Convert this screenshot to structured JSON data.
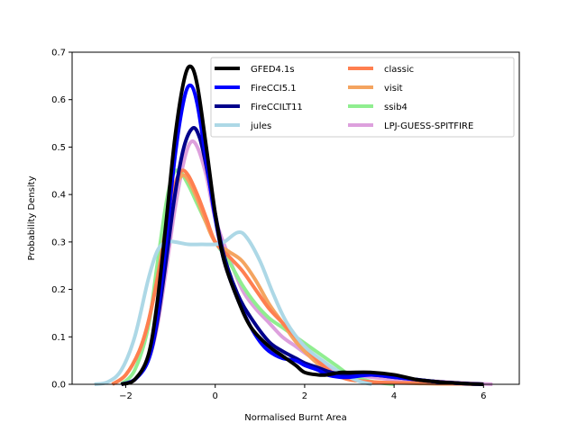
{
  "chart_data": {
    "type": "line",
    "title": "",
    "xlabel": "Normalised Burnt Area",
    "ylabel": "Probability Density",
    "xlim": [
      -3.2,
      6.8
    ],
    "ylim": [
      0,
      0.7
    ],
    "xticks": [
      -2,
      0,
      2,
      4,
      6
    ],
    "yticks": [
      0.0,
      0.1,
      0.2,
      0.3,
      0.4,
      0.5,
      0.6,
      0.7
    ],
    "xtick_labels": [
      "−2",
      "0",
      "2",
      "4",
      "6"
    ],
    "ytick_labels": [
      "0.0",
      "0.1",
      "0.2",
      "0.3",
      "0.4",
      "0.5",
      "0.6",
      "0.7"
    ],
    "grid": false,
    "legend_position": "top-right",
    "legend_columns": 2,
    "series": [
      {
        "name": "GFED4.1s",
        "color": "#000000",
        "x": [
          -2.1,
          -1.8,
          -1.5,
          -1.3,
          -1.1,
          -0.9,
          -0.7,
          -0.55,
          -0.4,
          -0.2,
          0.0,
          0.2,
          0.5,
          0.8,
          1.2,
          1.5,
          1.8,
          2.0,
          2.3,
          2.5,
          2.8,
          3.0,
          3.5,
          4.0,
          4.5,
          5.0,
          5.5,
          6.0
        ],
        "y": [
          0.0,
          0.01,
          0.06,
          0.17,
          0.34,
          0.52,
          0.64,
          0.67,
          0.63,
          0.5,
          0.36,
          0.26,
          0.18,
          0.12,
          0.08,
          0.06,
          0.04,
          0.025,
          0.02,
          0.02,
          0.025,
          0.025,
          0.025,
          0.02,
          0.01,
          0.005,
          0.002,
          0.0
        ]
      },
      {
        "name": "FireCCI5.1",
        "color": "#0000ff",
        "x": [
          -2.1,
          -1.8,
          -1.5,
          -1.3,
          -1.1,
          -0.9,
          -0.7,
          -0.55,
          -0.4,
          -0.2,
          0.0,
          0.2,
          0.5,
          0.8,
          1.0,
          1.2,
          1.5,
          1.8,
          2.0,
          2.3,
          2.5,
          2.8,
          3.0,
          3.5,
          4.0,
          4.5,
          5.0,
          5.5,
          6.0
        ],
        "y": [
          0.0,
          0.01,
          0.05,
          0.14,
          0.3,
          0.48,
          0.6,
          0.63,
          0.59,
          0.47,
          0.35,
          0.26,
          0.18,
          0.12,
          0.09,
          0.07,
          0.055,
          0.05,
          0.04,
          0.03,
          0.02,
          0.015,
          0.015,
          0.02,
          0.015,
          0.01,
          0.005,
          0.002,
          0.0
        ]
      },
      {
        "name": "FireCCILT11",
        "color": "#00008b",
        "x": [
          -2.1,
          -1.8,
          -1.5,
          -1.3,
          -1.1,
          -0.9,
          -0.7,
          -0.5,
          -0.35,
          -0.2,
          0.0,
          0.2,
          0.5,
          0.8,
          1.2,
          1.5,
          1.8,
          2.0,
          2.3,
          2.6,
          3.0,
          3.5,
          4.0,
          4.5,
          5.0,
          5.5,
          6.0
        ],
        "y": [
          0.0,
          0.01,
          0.05,
          0.13,
          0.26,
          0.4,
          0.5,
          0.54,
          0.52,
          0.46,
          0.36,
          0.27,
          0.19,
          0.14,
          0.09,
          0.07,
          0.055,
          0.045,
          0.035,
          0.025,
          0.02,
          0.02,
          0.015,
          0.01,
          0.005,
          0.002,
          0.0
        ]
      },
      {
        "name": "jules",
        "color": "#add8e6",
        "x": [
          -2.7,
          -2.4,
          -2.1,
          -1.8,
          -1.5,
          -1.3,
          -1.1,
          -0.9,
          -0.6,
          -0.3,
          0.0,
          0.2,
          0.5,
          0.7,
          1.0,
          1.3,
          1.6,
          2.0,
          2.4,
          2.8,
          3.2,
          3.5
        ],
        "y": [
          0.0,
          0.005,
          0.03,
          0.1,
          0.22,
          0.28,
          0.3,
          0.3,
          0.295,
          0.295,
          0.295,
          0.3,
          0.32,
          0.31,
          0.26,
          0.19,
          0.13,
          0.08,
          0.05,
          0.025,
          0.007,
          0.0
        ]
      },
      {
        "name": "classic",
        "color": "#ff7f50",
        "x": [
          -2.3,
          -2.0,
          -1.7,
          -1.5,
          -1.3,
          -1.1,
          -0.9,
          -0.75,
          -0.6,
          -0.4,
          -0.2,
          0.0,
          0.3,
          0.6,
          0.9,
          1.2,
          1.5,
          1.8,
          2.1,
          2.4,
          2.7,
          3.0,
          3.5,
          4.0,
          4.5,
          5.0,
          5.5,
          6.0
        ],
        "y": [
          0.0,
          0.02,
          0.07,
          0.13,
          0.22,
          0.33,
          0.42,
          0.45,
          0.44,
          0.4,
          0.35,
          0.3,
          0.27,
          0.24,
          0.2,
          0.16,
          0.13,
          0.1,
          0.07,
          0.04,
          0.02,
          0.01,
          0.005,
          0.003,
          0.003,
          0.002,
          0.001,
          0.0
        ]
      },
      {
        "name": "visit",
        "color": "#f4a460",
        "x": [
          -2.3,
          -2.0,
          -1.7,
          -1.5,
          -1.3,
          -1.1,
          -0.9,
          -0.75,
          -0.6,
          -0.4,
          -0.2,
          0.0,
          0.3,
          0.6,
          0.9,
          1.2,
          1.5,
          1.8,
          2.1,
          2.4,
          2.7,
          3.0,
          3.5,
          4.0,
          4.5,
          5.0,
          5.5,
          6.0
        ],
        "y": [
          0.0,
          0.02,
          0.07,
          0.13,
          0.22,
          0.32,
          0.41,
          0.44,
          0.43,
          0.39,
          0.34,
          0.3,
          0.28,
          0.26,
          0.22,
          0.17,
          0.13,
          0.09,
          0.06,
          0.035,
          0.02,
          0.01,
          0.005,
          0.003,
          0.002,
          0.001,
          0.001,
          0.0
        ]
      },
      {
        "name": "ssib4",
        "color": "#90ee90",
        "x": [
          -2.1,
          -1.8,
          -1.5,
          -1.3,
          -1.1,
          -0.95,
          -0.8,
          -0.6,
          -0.4,
          -0.2,
          0.0,
          0.3,
          0.6,
          0.9,
          1.2,
          1.5,
          1.8,
          2.1,
          2.4,
          2.7,
          3.0,
          3.3,
          3.6,
          4.0
        ],
        "y": [
          0.0,
          0.03,
          0.12,
          0.25,
          0.38,
          0.44,
          0.45,
          0.42,
          0.38,
          0.34,
          0.3,
          0.26,
          0.21,
          0.17,
          0.14,
          0.12,
          0.1,
          0.08,
          0.06,
          0.04,
          0.02,
          0.01,
          0.004,
          0.0
        ]
      },
      {
        "name": "LPJ-GUESS-SPITFIRE",
        "color": "#dda0dd",
        "x": [
          -2.1,
          -1.8,
          -1.5,
          -1.3,
          -1.1,
          -0.9,
          -0.7,
          -0.55,
          -0.4,
          -0.2,
          0.0,
          0.3,
          0.6,
          0.9,
          1.2,
          1.5,
          1.8,
          2.1,
          2.4,
          2.7,
          3.0,
          3.5,
          4.0,
          4.5,
          5.0,
          5.5,
          6.2
        ],
        "y": [
          0.0,
          0.01,
          0.05,
          0.12,
          0.24,
          0.37,
          0.47,
          0.51,
          0.5,
          0.44,
          0.35,
          0.27,
          0.2,
          0.16,
          0.13,
          0.1,
          0.08,
          0.06,
          0.045,
          0.03,
          0.02,
          0.015,
          0.01,
          0.008,
          0.006,
          0.003,
          0.0
        ]
      }
    ]
  }
}
